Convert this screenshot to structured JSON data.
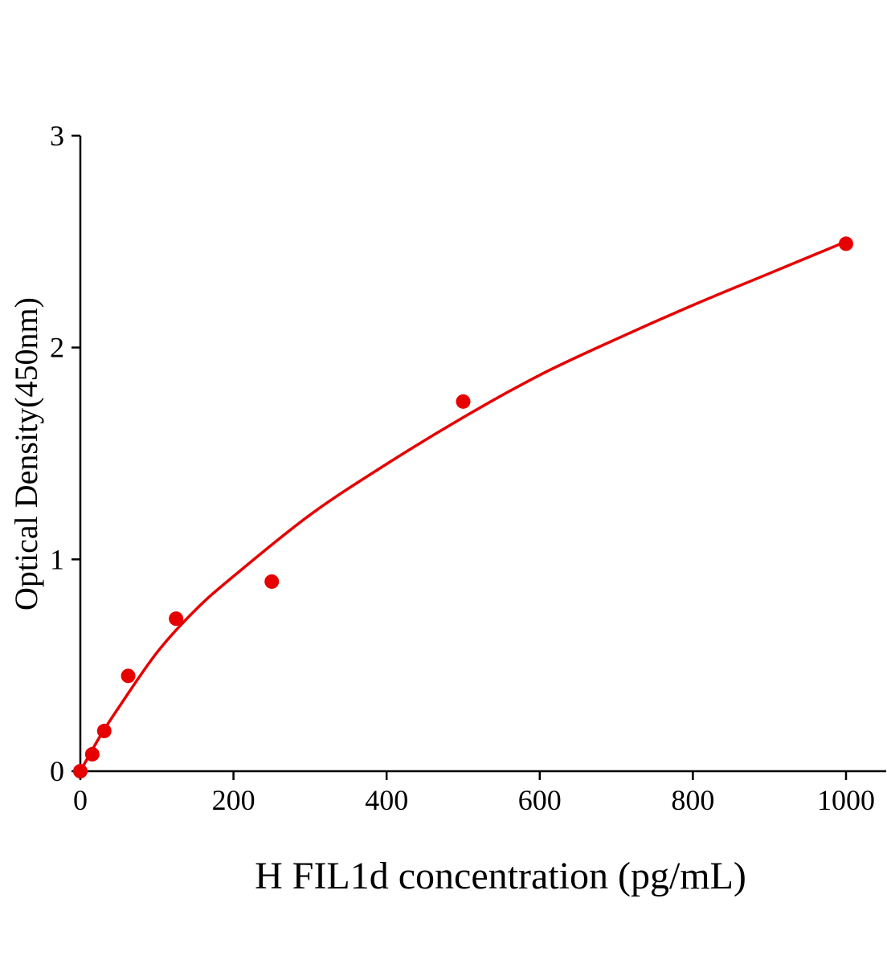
{
  "chart_data": {
    "type": "scatter",
    "title": "",
    "xlabel": "H FIL1d concentration (pg/mL)",
    "ylabel": "Optical Density(450nm)",
    "xlim": [
      0,
      1050
    ],
    "ylim": [
      0,
      3
    ],
    "xticks": [
      0,
      200,
      400,
      600,
      800,
      1000
    ],
    "yticks": [
      0,
      1,
      2,
      3
    ],
    "grid": false,
    "color": "#e60000",
    "points": {
      "x": [
        0,
        15.6,
        31.25,
        62.5,
        125,
        250,
        500,
        1000
      ],
      "y": [
        0.0,
        0.08,
        0.19,
        0.45,
        0.72,
        0.895,
        1.745,
        2.49
      ]
    },
    "fit_curve": {
      "x": [
        0,
        25,
        50,
        100,
        150,
        200,
        300,
        400,
        500,
        600,
        700,
        800,
        900,
        1000
      ],
      "y": [
        0,
        0.16,
        0.3,
        0.56,
        0.76,
        0.92,
        1.21,
        1.45,
        1.67,
        1.87,
        2.04,
        2.2,
        2.35,
        2.5
      ]
    }
  }
}
